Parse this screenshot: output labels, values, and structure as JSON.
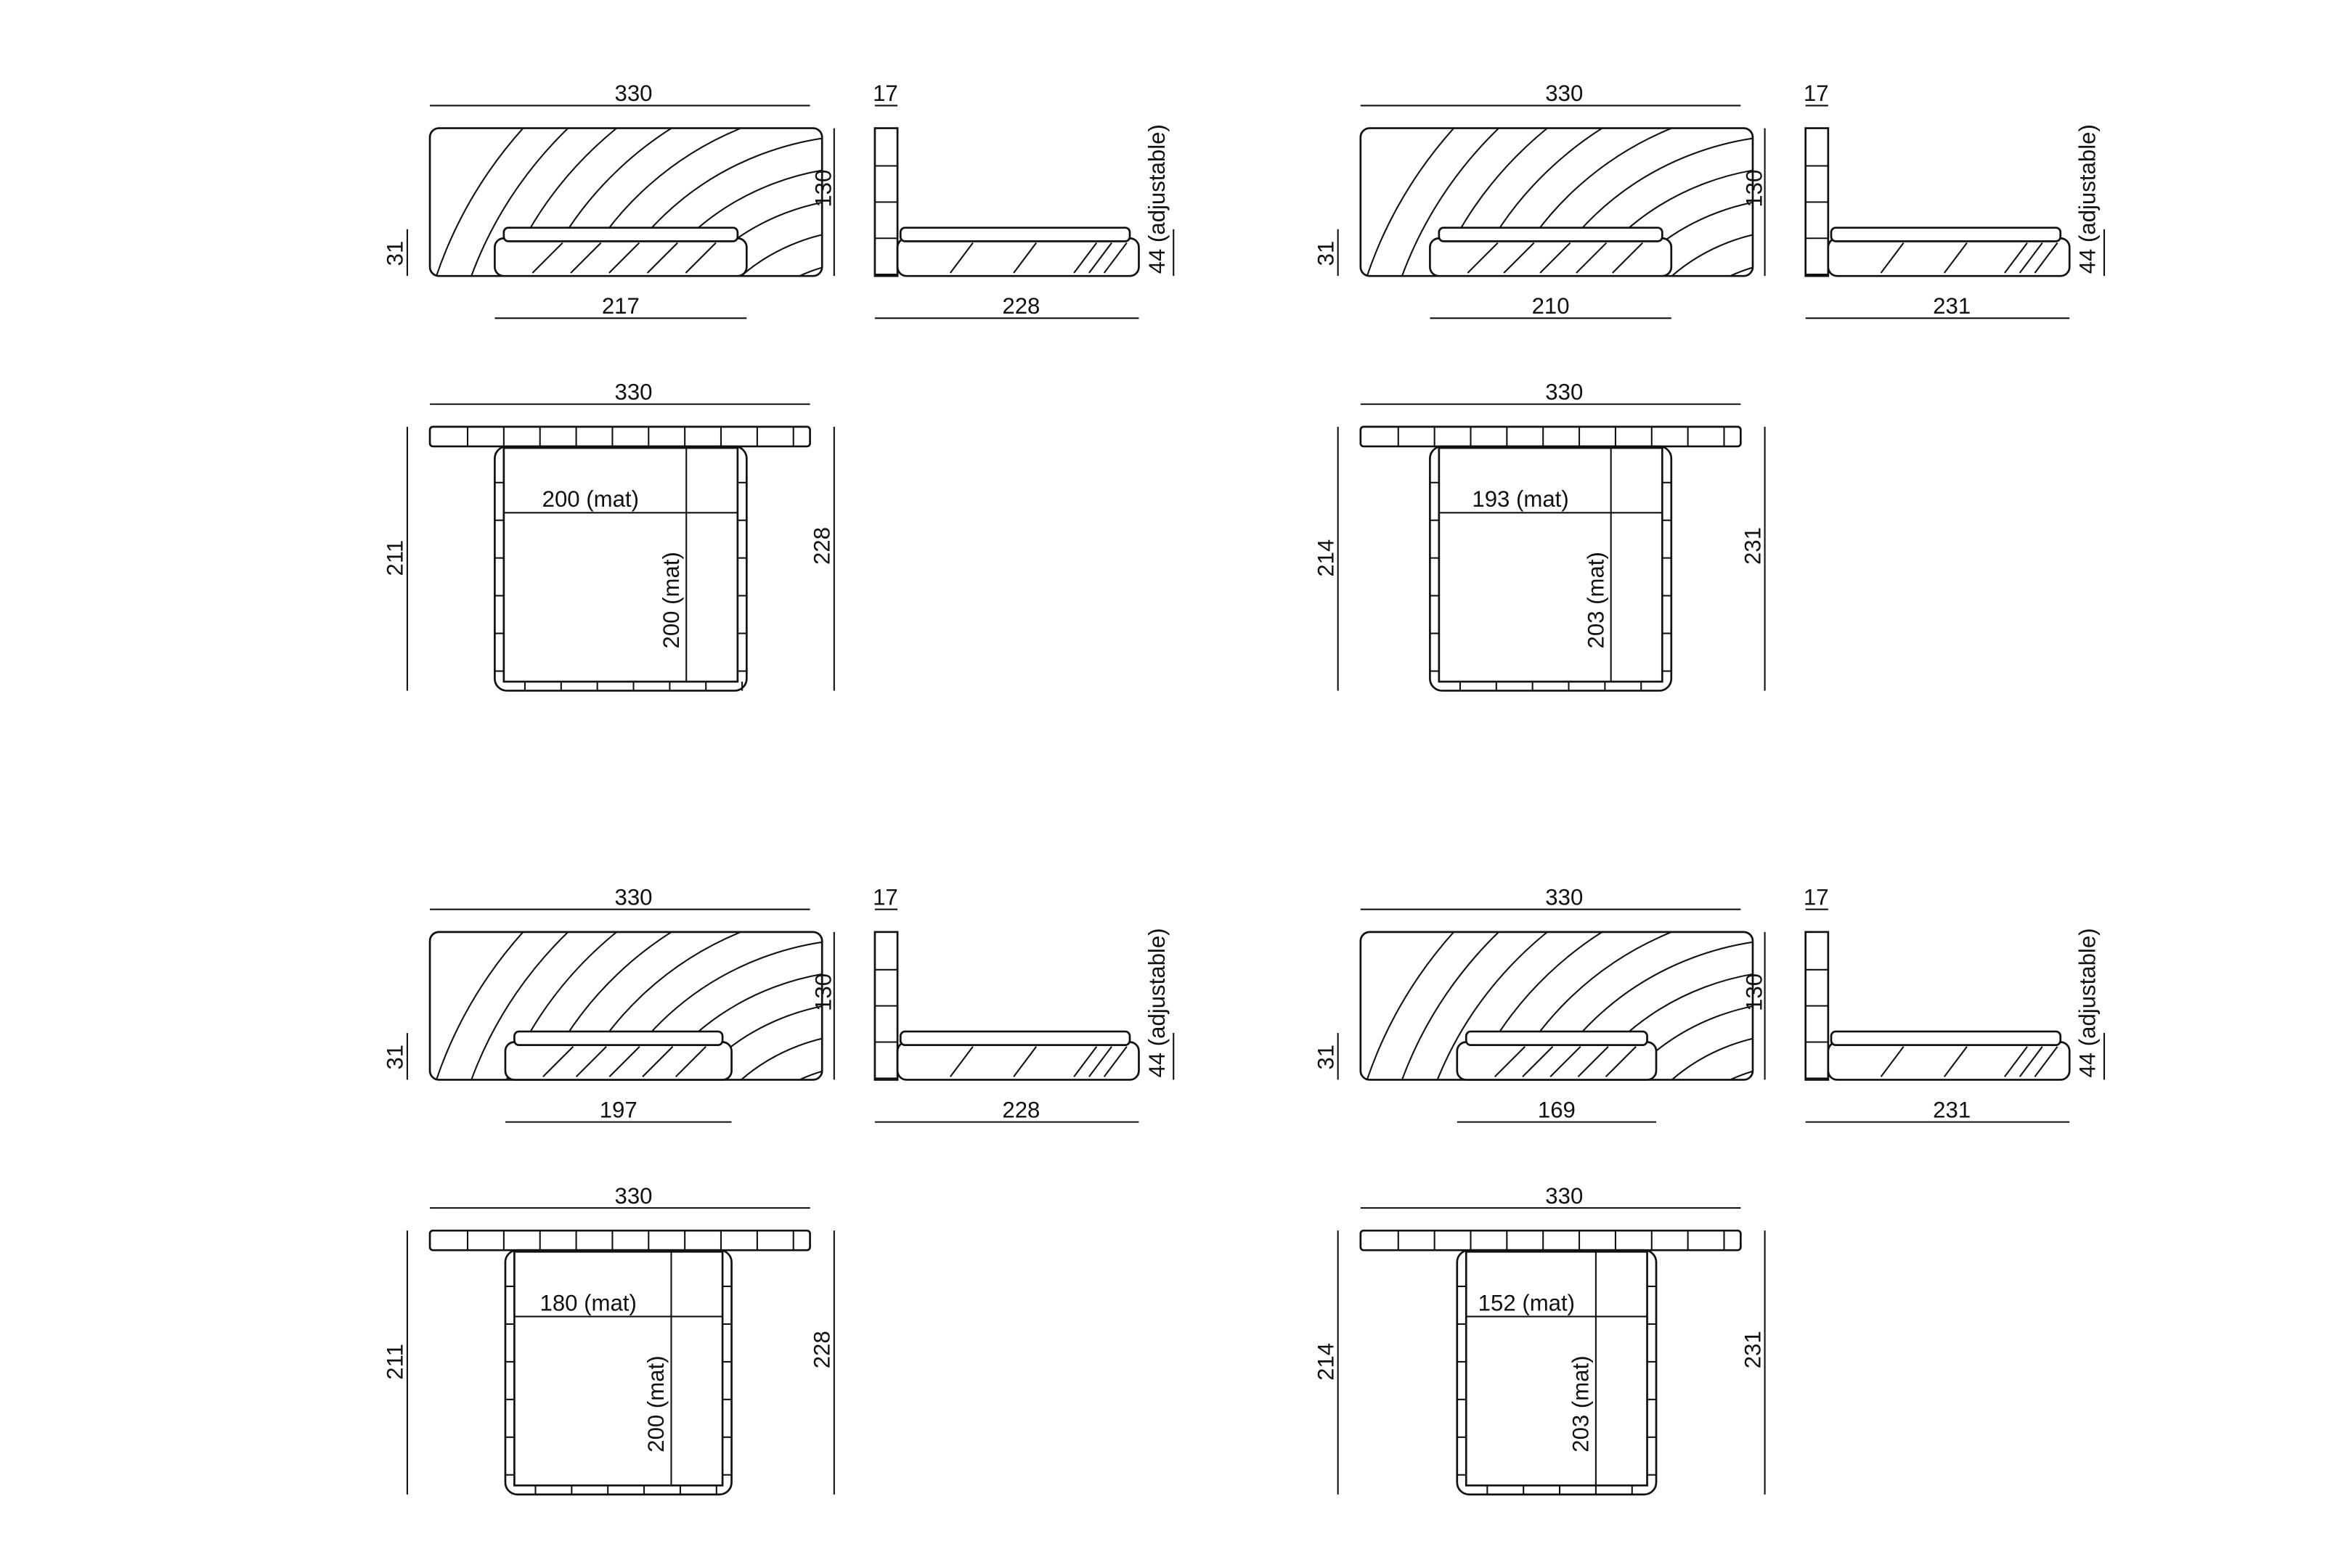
{
  "variants": [
    {
      "front": {
        "width": "330",
        "height": "130",
        "base_height": "31",
        "base_width": "217"
      },
      "side": {
        "headboard": "17",
        "height": "44 (adjustable)",
        "depth": "228"
      },
      "top": {
        "width": "330",
        "mat_width": "200 (mat)",
        "mat_length": "200 (mat)",
        "depth": "211",
        "total_depth": "228"
      }
    },
    {
      "front": {
        "width": "330",
        "height": "130",
        "base_height": "31",
        "base_width": "210"
      },
      "side": {
        "headboard": "17",
        "height": "44 (adjustable)",
        "depth": "231"
      },
      "top": {
        "width": "330",
        "mat_width": "193 (mat)",
        "mat_length": "203 (mat)",
        "depth": "214",
        "total_depth": "231"
      }
    },
    {
      "front": {
        "width": "330",
        "height": "130",
        "base_height": "31",
        "base_width": "197"
      },
      "side": {
        "headboard": "17",
        "height": "44 (adjustable)",
        "depth": "228"
      },
      "top": {
        "width": "330",
        "mat_width": "180 (mat)",
        "mat_length": "200 (mat)",
        "depth": "211",
        "total_depth": "228"
      }
    },
    {
      "front": {
        "width": "330",
        "height": "130",
        "base_height": "31",
        "base_width": "169"
      },
      "side": {
        "headboard": "17",
        "height": "44 (adjustable)",
        "depth": "231"
      },
      "top": {
        "width": "330",
        "mat_width": "152 (mat)",
        "mat_length": "203 (mat)",
        "depth": "214",
        "total_depth": "231"
      }
    }
  ]
}
